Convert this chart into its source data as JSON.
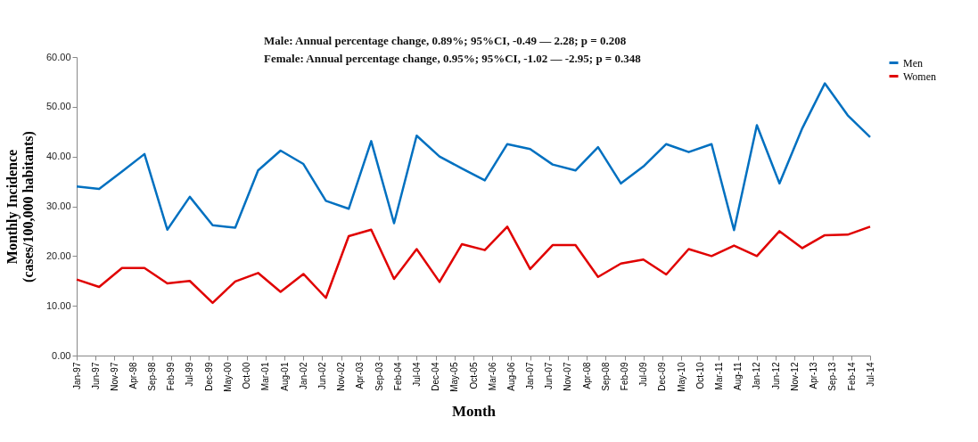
{
  "chart_data": {
    "type": "line",
    "xlabel": "Month",
    "ylabel": "Monthly Incidence\n(cases/100,000 habitants)",
    "annotations": [
      "Male: Annual percentage change, 0.89%; 95%CI, -0.49 — 2.28; p = 0.208",
      "Female: Annual percentage change, 0.95%; 95%CI, -1.02 — -2.95; p = 0.348"
    ],
    "x": [
      "1997-01",
      "1997-07",
      "1998-01",
      "1998-07",
      "1999-01",
      "1999-07",
      "2000-01",
      "2000-07",
      "2001-01",
      "2001-07",
      "2002-01",
      "2002-07",
      "2003-01",
      "2003-07",
      "2004-01",
      "2004-07",
      "2005-01",
      "2005-07",
      "2006-01",
      "2006-07",
      "2007-01",
      "2007-07",
      "2008-01",
      "2008-07",
      "2009-01",
      "2009-07",
      "2010-01",
      "2010-07",
      "2011-01",
      "2011-07",
      "2012-01",
      "2012-07",
      "2013-01",
      "2013-07",
      "2014-01",
      "2014-07"
    ],
    "series": [
      {
        "name": "Men",
        "color": "#0070c0",
        "values": [
          34.0,
          33.5,
          37.0,
          40.5,
          25.3,
          31.9,
          26.2,
          25.7,
          37.2,
          41.2,
          38.5,
          31.1,
          29.5,
          43.1,
          26.6,
          44.2,
          40.0,
          37.6,
          35.2,
          42.5,
          41.5,
          38.4,
          37.2,
          41.9,
          34.6,
          38.0,
          42.5,
          40.9,
          42.5,
          25.2,
          46.3,
          34.6,
          45.7,
          54.7,
          48.3,
          43.9
        ]
      },
      {
        "name": "Women",
        "color": "#e00000",
        "values": [
          15.3,
          13.8,
          17.6,
          17.6,
          14.5,
          15.0,
          10.6,
          14.9,
          16.6,
          12.8,
          16.4,
          11.6,
          24.0,
          25.3,
          15.4,
          21.4,
          14.8,
          22.4,
          21.2,
          25.9,
          17.4,
          22.2,
          22.2,
          15.8,
          18.5,
          19.3,
          16.3,
          21.4,
          20.0,
          22.1,
          20.0,
          25.0,
          21.6,
          24.2,
          24.3,
          25.9
        ]
      }
    ],
    "xlim": [
      "1997-01",
      "2014-07"
    ],
    "xticks": [
      {
        "value": "1997-01",
        "label": "Jan-97"
      },
      {
        "value": "1997-06",
        "label": "Jun-97"
      },
      {
        "value": "1997-11",
        "label": "Nov-97"
      },
      {
        "value": "1998-04",
        "label": "Apr-98"
      },
      {
        "value": "1998-09",
        "label": "Sep-98"
      },
      {
        "value": "1999-02",
        "label": "Feb-99"
      },
      {
        "value": "1999-07",
        "label": "Jul-99"
      },
      {
        "value": "1999-12",
        "label": "Dec-99"
      },
      {
        "value": "2000-05",
        "label": "May-00"
      },
      {
        "value": "2000-10",
        "label": "Oct-00"
      },
      {
        "value": "2001-03",
        "label": "Mar-01"
      },
      {
        "value": "2001-08",
        "label": "Aug-01"
      },
      {
        "value": "2002-01",
        "label": "Jan-02"
      },
      {
        "value": "2002-06",
        "label": "Jun-02"
      },
      {
        "value": "2002-11",
        "label": "Nov-02"
      },
      {
        "value": "2003-04",
        "label": "Apr-03"
      },
      {
        "value": "2003-09",
        "label": "Sep-03"
      },
      {
        "value": "2004-02",
        "label": "Feb-04"
      },
      {
        "value": "2004-07",
        "label": "Jul-04"
      },
      {
        "value": "2004-12",
        "label": "Dec-04"
      },
      {
        "value": "2005-05",
        "label": "May-05"
      },
      {
        "value": "2005-10",
        "label": "Oct-05"
      },
      {
        "value": "2006-03",
        "label": "Mar-06"
      },
      {
        "value": "2006-08",
        "label": "Aug-06"
      },
      {
        "value": "2007-01",
        "label": "Jan-07"
      },
      {
        "value": "2007-06",
        "label": "Jun-07"
      },
      {
        "value": "2007-11",
        "label": "Nov-07"
      },
      {
        "value": "2008-04",
        "label": "Apr-08"
      },
      {
        "value": "2008-09",
        "label": "Sep-08"
      },
      {
        "value": "2009-02",
        "label": "Feb-09"
      },
      {
        "value": "2009-07",
        "label": "Jul-09"
      },
      {
        "value": "2009-12",
        "label": "Dec-09"
      },
      {
        "value": "2010-05",
        "label": "May-10"
      },
      {
        "value": "2010-10",
        "label": "Oct-10"
      },
      {
        "value": "2011-03",
        "label": "Mar-11"
      },
      {
        "value": "2011-08",
        "label": "Aug-11"
      },
      {
        "value": "2012-01",
        "label": "Jan-12"
      },
      {
        "value": "2012-06",
        "label": "Jun-12"
      },
      {
        "value": "2012-11",
        "label": "Nov-12"
      },
      {
        "value": "2013-04",
        "label": "Apr-13"
      },
      {
        "value": "2013-09",
        "label": "Sep-13"
      },
      {
        "value": "2014-02",
        "label": "Feb-14"
      },
      {
        "value": "2014-07",
        "label": "Jul-14"
      }
    ],
    "ylim": [
      0,
      60
    ],
    "yticks": [
      {
        "value": 0,
        "label": "0.00"
      },
      {
        "value": 10,
        "label": "10.00"
      },
      {
        "value": 20,
        "label": "20.00"
      },
      {
        "value": 30,
        "label": "30.00"
      },
      {
        "value": 40,
        "label": "40.00"
      },
      {
        "value": 50,
        "label": "50.00"
      },
      {
        "value": 60,
        "label": "60.00"
      }
    ],
    "grid": false,
    "legend": "right",
    "marker": "none",
    "line_style": "solid"
  }
}
